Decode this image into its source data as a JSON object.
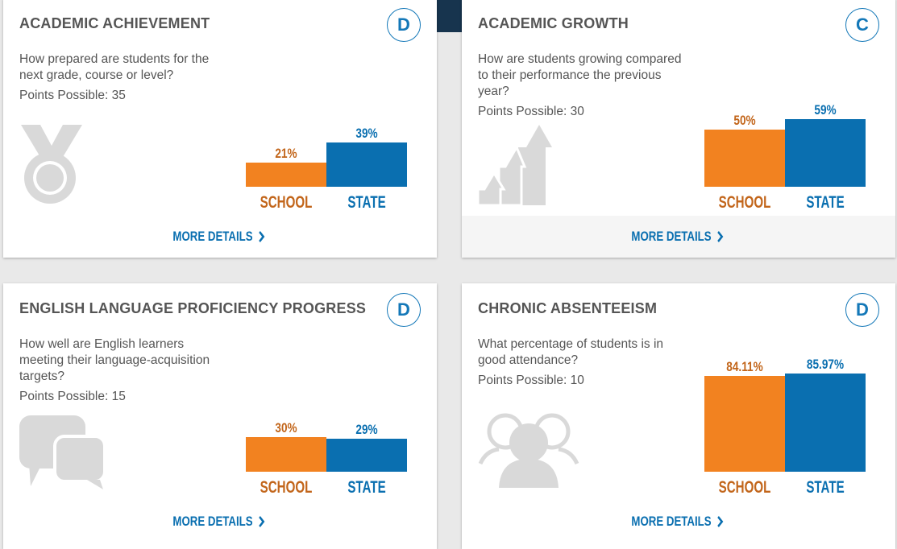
{
  "colors": {
    "school": "#f28220",
    "state": "#0a6fb0",
    "icon": "#d9d9d9"
  },
  "bar_scale_max_pct": 100,
  "cards": [
    {
      "title": "ACADEMIC ACHIEVEMENT",
      "grade": "D",
      "question": "How prepared are students for the next grade, course or level?",
      "points": "Points Possible: 35",
      "icon": "medal-icon",
      "school_label": "SCHOOL",
      "state_label": "STATE",
      "school_value": "21%",
      "state_value": "39%",
      "more": "MORE DETAILS"
    },
    {
      "title": "ACADEMIC GROWTH",
      "grade": "C",
      "question": "How are students growing compared to their performance the previous year?",
      "points": "Points Possible: 30",
      "icon": "growth-arrows-icon",
      "school_label": "SCHOOL",
      "state_label": "STATE",
      "school_value": "50%",
      "state_value": "59%",
      "more": "MORE DETAILS"
    },
    {
      "title": "ENGLISH LANGUAGE PROFICIENCY PROGRESS",
      "grade": "D",
      "question": "How well are English learners meeting their language-acquisition targets?",
      "points": "Points Possible: 15",
      "icon": "speech-bubbles-icon",
      "school_label": "SCHOOL",
      "state_label": "STATE",
      "school_value": "30%",
      "state_value": "29%",
      "more": "MORE DETAILS"
    },
    {
      "title": "CHRONIC ABSENTEEISM",
      "grade": "D",
      "question": "What percentage of students is in good attendance?",
      "points": "Points Possible: 10",
      "icon": "people-group-icon",
      "school_label": "SCHOOL",
      "state_label": "STATE",
      "school_value": "84.11%",
      "state_value": "85.97%",
      "more": "MORE DETAILS"
    }
  ]
}
